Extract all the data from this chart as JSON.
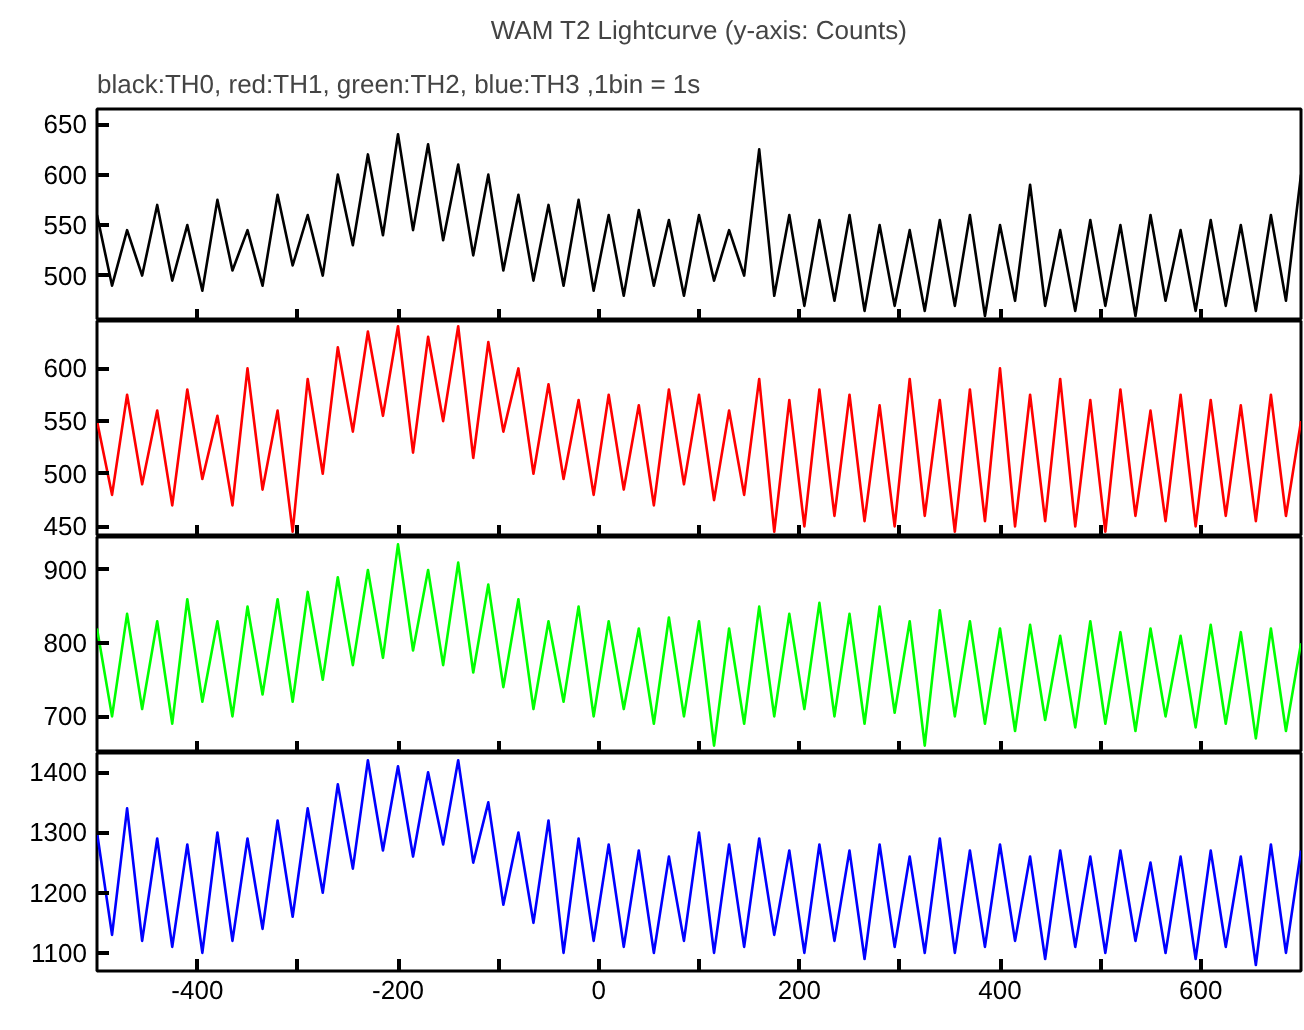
{
  "chart_data": [
    {
      "type": "line",
      "title": "WAM T2 Lightcurve (y-axis: Counts)",
      "subtitle": "black:TH0, red:TH1, green:TH2, blue:TH3 ,1bin = 1s",
      "x": [
        -500,
        -485,
        -470,
        -455,
        -440,
        -425,
        -410,
        -395,
        -380,
        -365,
        -350,
        -335,
        -320,
        -305,
        -290,
        -275,
        -260,
        -245,
        -230,
        -215,
        -200,
        -185,
        -170,
        -155,
        -140,
        -125,
        -110,
        -95,
        -80,
        -65,
        -50,
        -35,
        -20,
        -5,
        10,
        25,
        40,
        55,
        70,
        85,
        100,
        115,
        130,
        145,
        160,
        175,
        190,
        205,
        220,
        235,
        250,
        265,
        280,
        295,
        310,
        325,
        340,
        355,
        370,
        385,
        400,
        415,
        430,
        445,
        460,
        475,
        490,
        505,
        520,
        535,
        550,
        565,
        580,
        595,
        610,
        625,
        640,
        655,
        670,
        685,
        700
      ],
      "series": [
        {
          "color": "#000000",
          "values": [
            560,
            490,
            545,
            500,
            570,
            495,
            550,
            485,
            575,
            505,
            545,
            490,
            580,
            510,
            560,
            500,
            600,
            530,
            620,
            540,
            640,
            545,
            630,
            535,
            610,
            520,
            600,
            505,
            580,
            495,
            570,
            490,
            575,
            485,
            560,
            480,
            565,
            490,
            555,
            480,
            560,
            495,
            545,
            500,
            625,
            480,
            560,
            470,
            555,
            475,
            560,
            465,
            550,
            470,
            545,
            465,
            555,
            470,
            560,
            460,
            550,
            475,
            590,
            470,
            545,
            465,
            555,
            470,
            550,
            460,
            560,
            475,
            545,
            465,
            555,
            470,
            550,
            465,
            560,
            475,
            600
          ]
        }
      ],
      "xlim": [
        -500,
        700
      ],
      "ylim": [
        455,
        665
      ],
      "yticks": [
        500,
        550,
        600,
        650
      ],
      "xticks": [
        -400,
        {
          "value": -300,
          "label": null
        },
        -200,
        {
          "value": -100,
          "label": null
        },
        0,
        {
          "value": 100,
          "label": null
        },
        200,
        {
          "value": 300,
          "label": null
        },
        400,
        {
          "value": 500,
          "label": null
        },
        600
      ],
      "tick_labels": "y",
      "grid": false
    },
    {
      "type": "line",
      "x": [
        -500,
        -485,
        -470,
        -455,
        -440,
        -425,
        -410,
        -395,
        -380,
        -365,
        -350,
        -335,
        -320,
        -305,
        -290,
        -275,
        -260,
        -245,
        -230,
        -215,
        -200,
        -185,
        -170,
        -155,
        -140,
        -125,
        -110,
        -95,
        -80,
        -65,
        -50,
        -35,
        -20,
        -5,
        10,
        25,
        40,
        55,
        70,
        85,
        100,
        115,
        130,
        145,
        160,
        175,
        190,
        205,
        220,
        235,
        250,
        265,
        280,
        295,
        310,
        325,
        340,
        355,
        370,
        385,
        400,
        415,
        430,
        445,
        460,
        475,
        490,
        505,
        520,
        535,
        550,
        565,
        580,
        595,
        610,
        625,
        640,
        655,
        670,
        685,
        700
      ],
      "series": [
        {
          "color": "#ff0000",
          "values": [
            550,
            480,
            575,
            490,
            560,
            470,
            580,
            495,
            555,
            470,
            600,
            485,
            560,
            445,
            590,
            500,
            620,
            540,
            635,
            555,
            640,
            520,
            630,
            550,
            640,
            515,
            625,
            540,
            600,
            500,
            585,
            495,
            570,
            480,
            575,
            485,
            565,
            470,
            580,
            490,
            575,
            475,
            560,
            480,
            590,
            445,
            570,
            450,
            580,
            460,
            575,
            455,
            565,
            450,
            590,
            460,
            570,
            445,
            580,
            455,
            600,
            450,
            575,
            455,
            590,
            450,
            570,
            445,
            580,
            460,
            560,
            455,
            575,
            450,
            570,
            460,
            565,
            455,
            575,
            460,
            550
          ]
        }
      ],
      "xlim": [
        -500,
        700
      ],
      "ylim": [
        440,
        645
      ],
      "yticks": [
        450,
        500,
        550,
        600
      ],
      "xticks": [
        -400,
        {
          "value": -300,
          "label": null
        },
        -200,
        {
          "value": -100,
          "label": null
        },
        0,
        {
          "value": 100,
          "label": null
        },
        200,
        {
          "value": 300,
          "label": null
        },
        400,
        {
          "value": 500,
          "label": null
        },
        600
      ],
      "tick_labels": "y",
      "grid": false
    },
    {
      "type": "line",
      "x": [
        -500,
        -485,
        -470,
        -455,
        -440,
        -425,
        -410,
        -395,
        -380,
        -365,
        -350,
        -335,
        -320,
        -305,
        -290,
        -275,
        -260,
        -245,
        -230,
        -215,
        -200,
        -185,
        -170,
        -155,
        -140,
        -125,
        -110,
        -95,
        -80,
        -65,
        -50,
        -35,
        -20,
        -5,
        10,
        25,
        40,
        55,
        70,
        85,
        100,
        115,
        130,
        145,
        160,
        175,
        190,
        205,
        220,
        235,
        250,
        265,
        280,
        295,
        310,
        325,
        340,
        355,
        370,
        385,
        400,
        415,
        430,
        445,
        460,
        475,
        490,
        505,
        520,
        535,
        550,
        565,
        580,
        595,
        610,
        625,
        640,
        655,
        670,
        685,
        700
      ],
      "series": [
        {
          "color": "#00ff00",
          "values": [
            820,
            700,
            840,
            710,
            830,
            690,
            860,
            720,
            830,
            700,
            850,
            730,
            860,
            720,
            870,
            750,
            890,
            770,
            900,
            780,
            935,
            790,
            900,
            770,
            910,
            760,
            880,
            740,
            860,
            710,
            830,
            720,
            850,
            700,
            830,
            710,
            820,
            690,
            835,
            700,
            830,
            660,
            820,
            690,
            850,
            700,
            840,
            710,
            855,
            700,
            840,
            690,
            850,
            705,
            830,
            660,
            845,
            700,
            830,
            690,
            820,
            680,
            825,
            695,
            810,
            685,
            830,
            690,
            815,
            680,
            820,
            700,
            810,
            685,
            825,
            690,
            815,
            670,
            820,
            680,
            800
          ]
        }
      ],
      "xlim": [
        -500,
        700
      ],
      "ylim": [
        650,
        945
      ],
      "yticks": [
        700,
        800,
        900
      ],
      "xticks": [
        -400,
        {
          "value": -300,
          "label": null
        },
        -200,
        {
          "value": -100,
          "label": null
        },
        0,
        {
          "value": 100,
          "label": null
        },
        200,
        {
          "value": 300,
          "label": null
        },
        400,
        {
          "value": 500,
          "label": null
        },
        600
      ],
      "tick_labels": "y",
      "grid": false
    },
    {
      "type": "line",
      "x": [
        -500,
        -485,
        -470,
        -455,
        -440,
        -425,
        -410,
        -395,
        -380,
        -365,
        -350,
        -335,
        -320,
        -305,
        -290,
        -275,
        -260,
        -245,
        -230,
        -215,
        -200,
        -185,
        -170,
        -155,
        -140,
        -125,
        -110,
        -95,
        -80,
        -65,
        -50,
        -35,
        -20,
        -5,
        10,
        25,
        40,
        55,
        70,
        85,
        100,
        115,
        130,
        145,
        160,
        175,
        190,
        205,
        220,
        235,
        250,
        265,
        280,
        295,
        310,
        325,
        340,
        355,
        370,
        385,
        400,
        415,
        430,
        445,
        460,
        475,
        490,
        505,
        520,
        535,
        550,
        565,
        580,
        595,
        610,
        625,
        640,
        655,
        670,
        685,
        700
      ],
      "series": [
        {
          "color": "#0000ff",
          "values": [
            1300,
            1130,
            1340,
            1120,
            1290,
            1110,
            1280,
            1100,
            1300,
            1120,
            1290,
            1140,
            1320,
            1160,
            1340,
            1200,
            1380,
            1240,
            1420,
            1270,
            1410,
            1260,
            1400,
            1280,
            1420,
            1250,
            1350,
            1180,
            1300,
            1150,
            1320,
            1100,
            1290,
            1120,
            1280,
            1110,
            1270,
            1100,
            1260,
            1120,
            1300,
            1100,
            1280,
            1110,
            1290,
            1130,
            1270,
            1100,
            1280,
            1120,
            1270,
            1090,
            1280,
            1110,
            1260,
            1100,
            1290,
            1100,
            1270,
            1110,
            1280,
            1120,
            1260,
            1090,
            1270,
            1110,
            1260,
            1100,
            1270,
            1120,
            1250,
            1100,
            1260,
            1090,
            1270,
            1110,
            1260,
            1080,
            1280,
            1100,
            1270
          ]
        }
      ],
      "xlim": [
        -500,
        700
      ],
      "ylim": [
        1070,
        1432
      ],
      "yticks": [
        1100,
        1200,
        1300,
        1400
      ],
      "xticks": [
        -400,
        {
          "value": -300,
          "label": null
        },
        -200,
        {
          "value": -100,
          "label": null
        },
        0,
        {
          "value": 100,
          "label": null
        },
        200,
        {
          "value": 300,
          "label": null
        },
        400,
        {
          "value": 500,
          "label": null
        },
        600
      ],
      "grid": false
    }
  ]
}
